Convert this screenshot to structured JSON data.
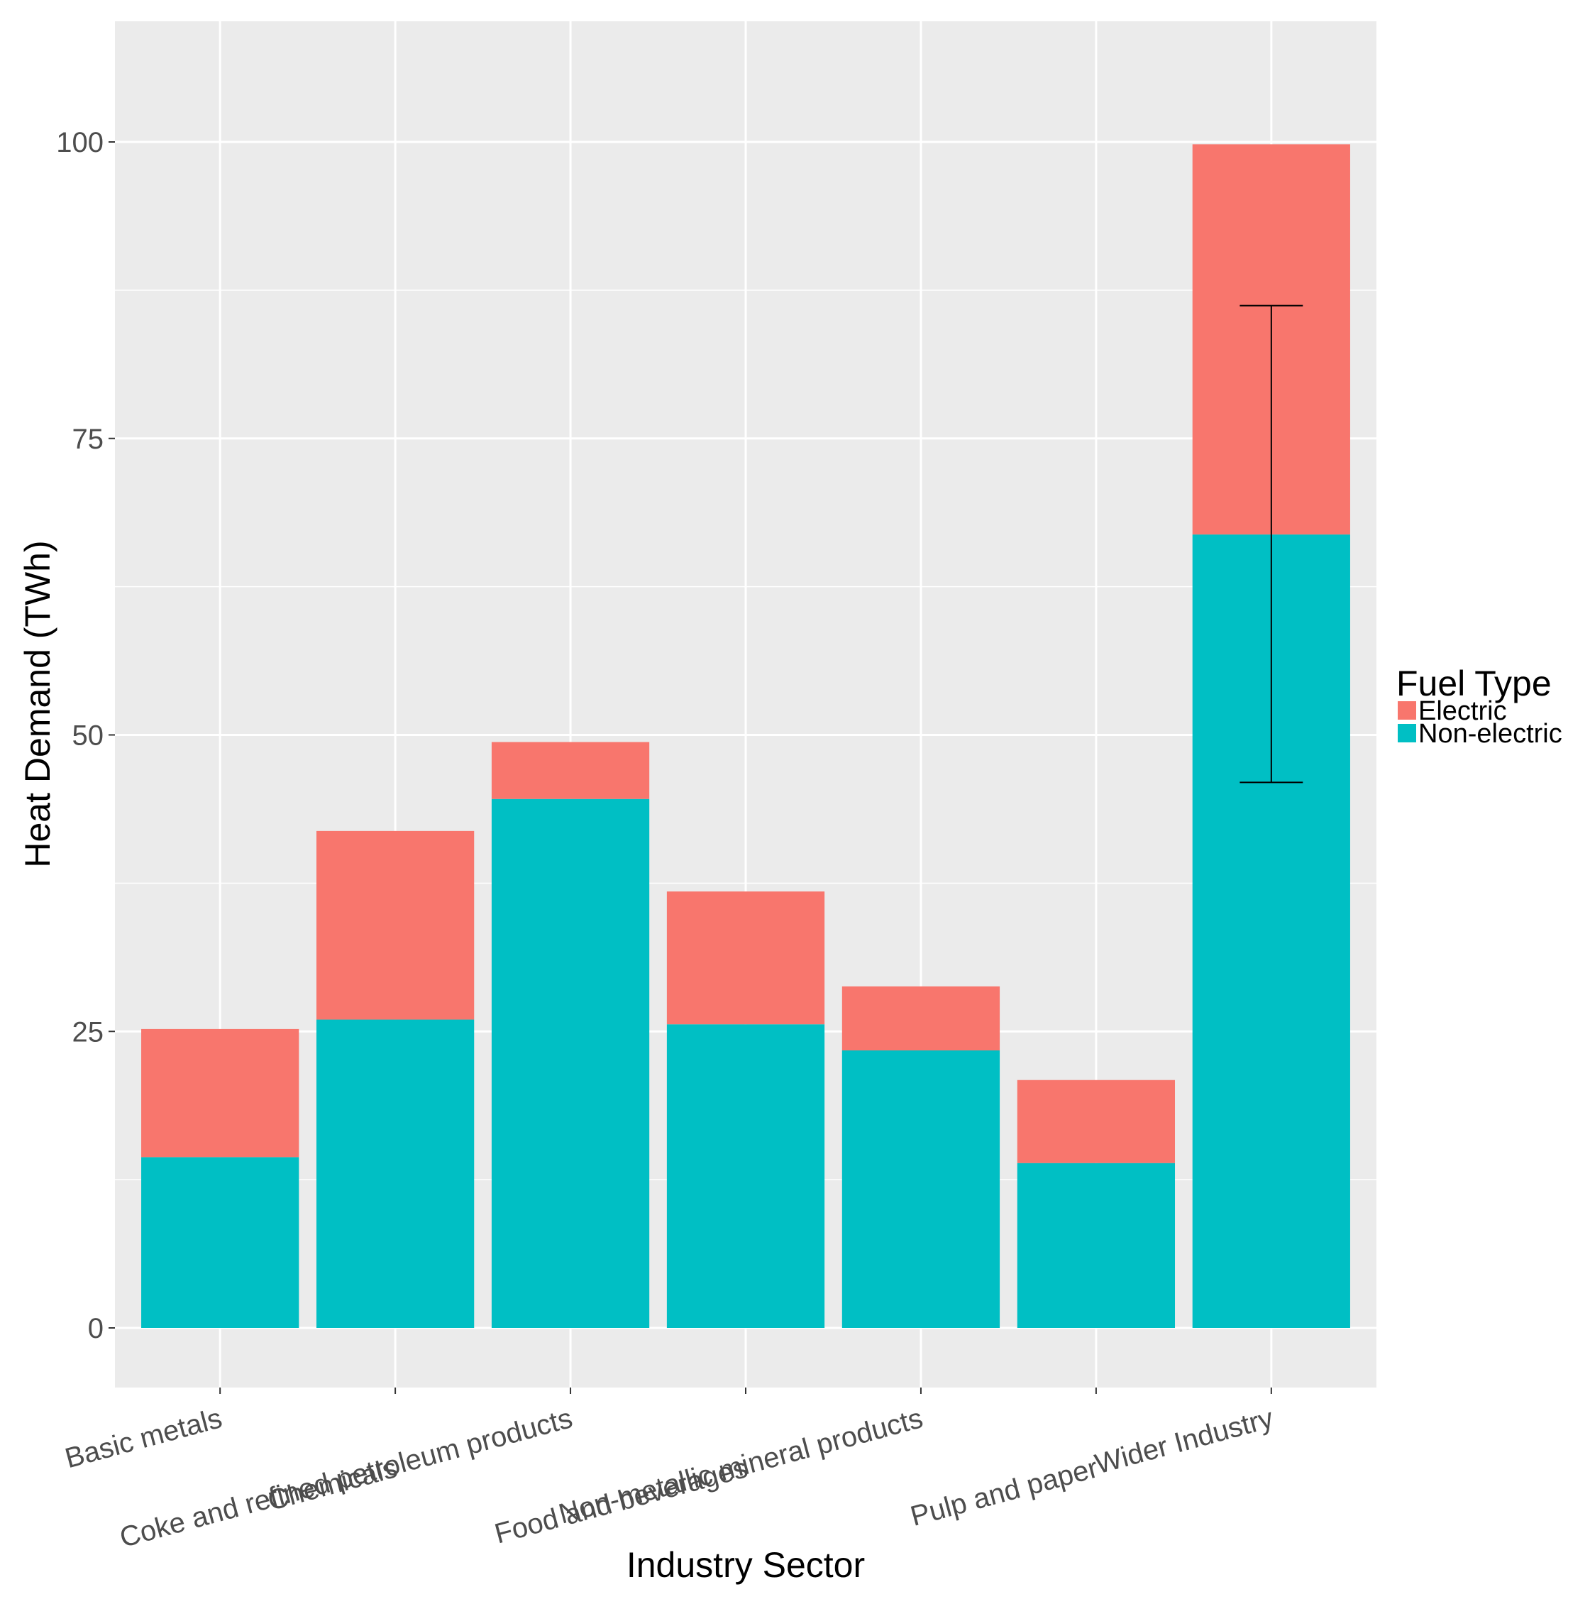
{
  "chart_data": {
    "type": "bar",
    "stacked": true,
    "title": "",
    "xlabel": "Industry Sector",
    "ylabel": "Heat Demand (TWh)",
    "ylim": [
      -5,
      110
    ],
    "yticks": [
      0,
      25,
      50,
      75,
      100
    ],
    "grid": true,
    "categories": [
      "Basic metals",
      "Chemicals",
      "Coke and refined petroleum products",
      "Food and beverages",
      "Non-metallic mineral products",
      "Pulp and paper",
      "Wider Industry"
    ],
    "series": [
      {
        "name": "Non-electric",
        "color": "#00BFC4",
        "values": [
          14.4,
          26.0,
          44.6,
          25.6,
          23.4,
          13.9,
          66.9
        ]
      },
      {
        "name": "Electric",
        "color": "#F8766D",
        "values": [
          10.8,
          15.9,
          4.8,
          11.2,
          5.4,
          7.0,
          32.9
        ]
      }
    ],
    "error_bars": [
      {
        "category": "Wider Industry",
        "low": 46.0,
        "high": 86.2
      }
    ],
    "legend": {
      "title": "Fuel Type",
      "position": "right",
      "entries": [
        "Electric",
        "Non-electric"
      ]
    },
    "colors": {
      "panel": "#EBEBEB",
      "grid": "#FFFFFF",
      "error_bar": "#000000"
    }
  }
}
